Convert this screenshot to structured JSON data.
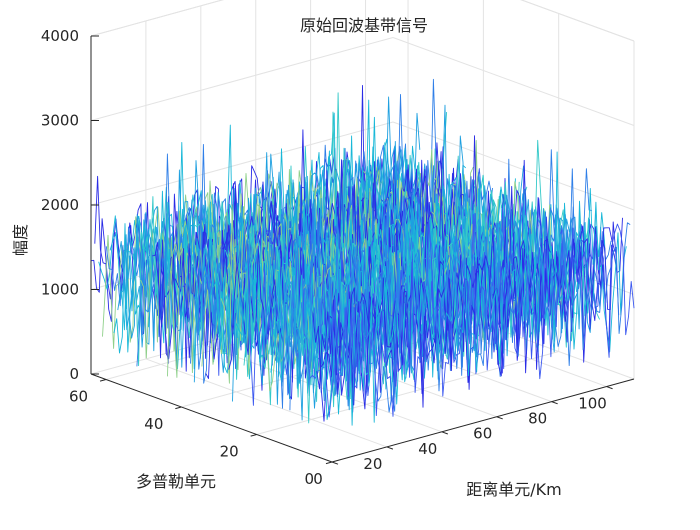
{
  "chart_data": {
    "type": "line",
    "title": "原始回波基带信号",
    "xlabel": "距离单元/Km",
    "ylabel": "多普勒单元",
    "zlabel": "幅度",
    "xlim": [
      0,
      110
    ],
    "ylim": [
      0,
      64
    ],
    "zlim": [
      0,
      4000
    ],
    "x_ticks": [
      "0",
      "20",
      "40",
      "60",
      "80",
      "100"
    ],
    "y_ticks": [
      "0",
      "20",
      "40",
      "60"
    ],
    "z_ticks": [
      "0",
      "1000",
      "2000",
      "3000",
      "4000"
    ],
    "view": "3d",
    "grid": true,
    "series_count": 64,
    "points_per_series": 110,
    "value_mean": 1300,
    "value_max": 3800,
    "colors": [
      "#2a2ce6",
      "#3b58f0",
      "#2f7fe8",
      "#1ea0e0",
      "#19b8d8",
      "#34c9c9",
      "#8fd08a"
    ]
  }
}
